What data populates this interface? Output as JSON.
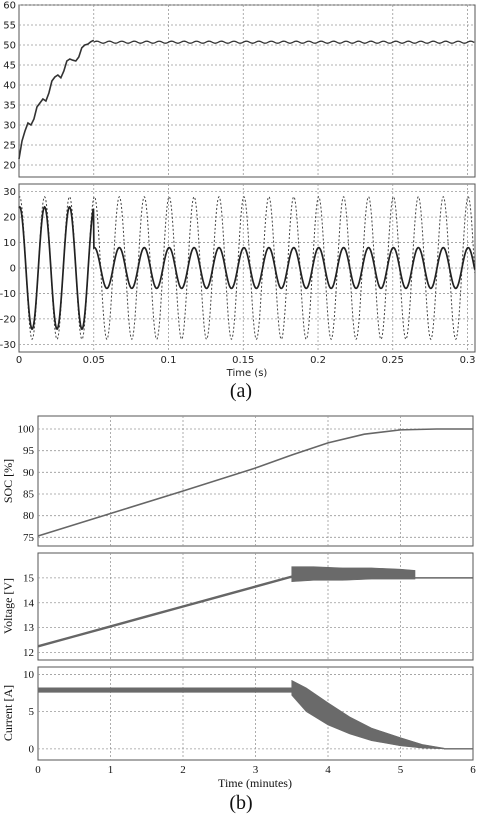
{
  "chart_data": [
    {
      "panel": "a-top",
      "type": "line",
      "xlim": [
        0,
        0.305
      ],
      "ylim": [
        17,
        60
      ],
      "yticks": [
        "20",
        "25",
        "30",
        "35",
        "40",
        "45",
        "50",
        "55",
        "60"
      ],
      "grid": true,
      "series": [
        {
          "style": "solid",
          "x": [
            0,
            0.002,
            0.004,
            0.006,
            0.008,
            0.01,
            0.012,
            0.014,
            0.016,
            0.018,
            0.02,
            0.022,
            0.024,
            0.026,
            0.028,
            0.03,
            0.032,
            0.034,
            0.036,
            0.038,
            0.04,
            0.042,
            0.044,
            0.046,
            0.048,
            0.05,
            0.052,
            0.055,
            0.06,
            0.07,
            0.08,
            0.09,
            0.1,
            0.12,
            0.14,
            0.16,
            0.18,
            0.2,
            0.22,
            0.24,
            0.26,
            0.28,
            0.3
          ],
          "y": [
            21.5,
            26,
            28.5,
            30.5,
            30,
            31.5,
            34.5,
            35.5,
            36.5,
            36,
            38,
            41,
            42,
            42.5,
            41.8,
            43.5,
            46,
            46.5,
            46.2,
            46,
            47,
            49.3,
            50,
            50.2,
            50.8,
            51.2,
            51,
            50.6,
            50.9,
            50.5,
            50.9,
            50.5,
            50.9,
            50.6,
            50.9,
            50.6,
            50.9,
            50.6,
            50.8,
            50.6,
            50.8,
            50.6,
            50.7
          ]
        }
      ]
    },
    {
      "panel": "a-bottom",
      "type": "line",
      "xlim": [
        0,
        0.305
      ],
      "ylim": [
        -33,
        33
      ],
      "yticks": [
        "-30",
        "-20",
        "-10",
        "0",
        "10",
        "20",
        "30"
      ],
      "xticks": [
        "0",
        "0.05",
        "0.1",
        "0.15",
        "0.2",
        "0.25",
        "0.3"
      ],
      "xlabel": "Time (s)",
      "grid": true,
      "series": [
        {
          "style": "dashed",
          "frequency_hz": 60,
          "amplitude": 28,
          "start": 0,
          "end": 0.305
        },
        {
          "style": "solid",
          "frequency_hz": 60,
          "segments": [
            {
              "start": 0,
              "end": 0.05,
              "amplitude": 24
            },
            {
              "start": 0.05,
              "end": 0.305,
              "amplitude": 8
            }
          ]
        }
      ]
    },
    {
      "panel": "b-soc",
      "type": "line",
      "xlim": [
        0,
        6
      ],
      "ylim": [
        73,
        103
      ],
      "yticks": [
        "75",
        "80",
        "85",
        "90",
        "95",
        "100"
      ],
      "ylabel": "SOC [%]",
      "grid": true,
      "series": [
        {
          "x": [
            0,
            1,
            2,
            3,
            3.5,
            4,
            4.5,
            5,
            5.5,
            6
          ],
          "y": [
            75.3,
            80.5,
            85.7,
            91,
            94,
            96.8,
            98.8,
            99.8,
            100,
            100
          ]
        }
      ]
    },
    {
      "panel": "b-voltage",
      "type": "line",
      "xlim": [
        0,
        6
      ],
      "ylim": [
        11.7,
        16
      ],
      "yticks": [
        "12",
        "13",
        "14",
        "15"
      ],
      "ylabel": "Voltage [V]",
      "grid": true,
      "series": [
        {
          "x": [
            0,
            0.5,
            1,
            1.5,
            2,
            2.5,
            3,
            3.5
          ],
          "y": [
            12.25,
            12.65,
            13.05,
            13.45,
            13.85,
            14.25,
            14.65,
            15.05
          ]
        },
        {
          "band": true,
          "x": [
            3.5,
            3.8,
            4.2,
            4.6,
            5,
            5.2
          ],
          "ylow": [
            14.85,
            14.9,
            14.9,
            14.95,
            14.95,
            14.95
          ],
          "yhigh": [
            15.45,
            15.45,
            15.4,
            15.4,
            15.35,
            15.3
          ]
        },
        {
          "x": [
            5.2,
            5.5,
            6
          ],
          "y": [
            15.0,
            15.0,
            15.0
          ]
        }
      ]
    },
    {
      "panel": "b-current",
      "type": "line",
      "xlim": [
        0,
        6
      ],
      "ylim": [
        -1.5,
        11
      ],
      "yticks": [
        "0",
        "5",
        "10"
      ],
      "xticks": [
        "0",
        "1",
        "2",
        "3",
        "4",
        "5",
        "6"
      ],
      "ylabel": "Current [A]",
      "xlabel": "Time (minutes)",
      "grid": true,
      "series": [
        {
          "band": true,
          "x": [
            0,
            1,
            2,
            3,
            3.5
          ],
          "ylow": [
            7.6,
            7.6,
            7.6,
            7.6,
            7.6
          ],
          "yhigh": [
            8.2,
            8.2,
            8.2,
            8.2,
            8.2
          ]
        },
        {
          "band": true,
          "x": [
            3.5,
            3.7,
            4,
            4.3,
            4.6,
            5,
            5.3,
            5.6
          ],
          "ylow": [
            7.2,
            5,
            3.2,
            2,
            1.1,
            0.4,
            0.1,
            0
          ],
          "yhigh": [
            9.2,
            8.2,
            6.2,
            4.3,
            2.8,
            1.5,
            0.6,
            0.1
          ]
        },
        {
          "x": [
            5.6,
            6
          ],
          "y": [
            0,
            0
          ]
        }
      ]
    }
  ],
  "labels": {
    "panel_a": "(a)",
    "panel_b": "(b)"
  }
}
